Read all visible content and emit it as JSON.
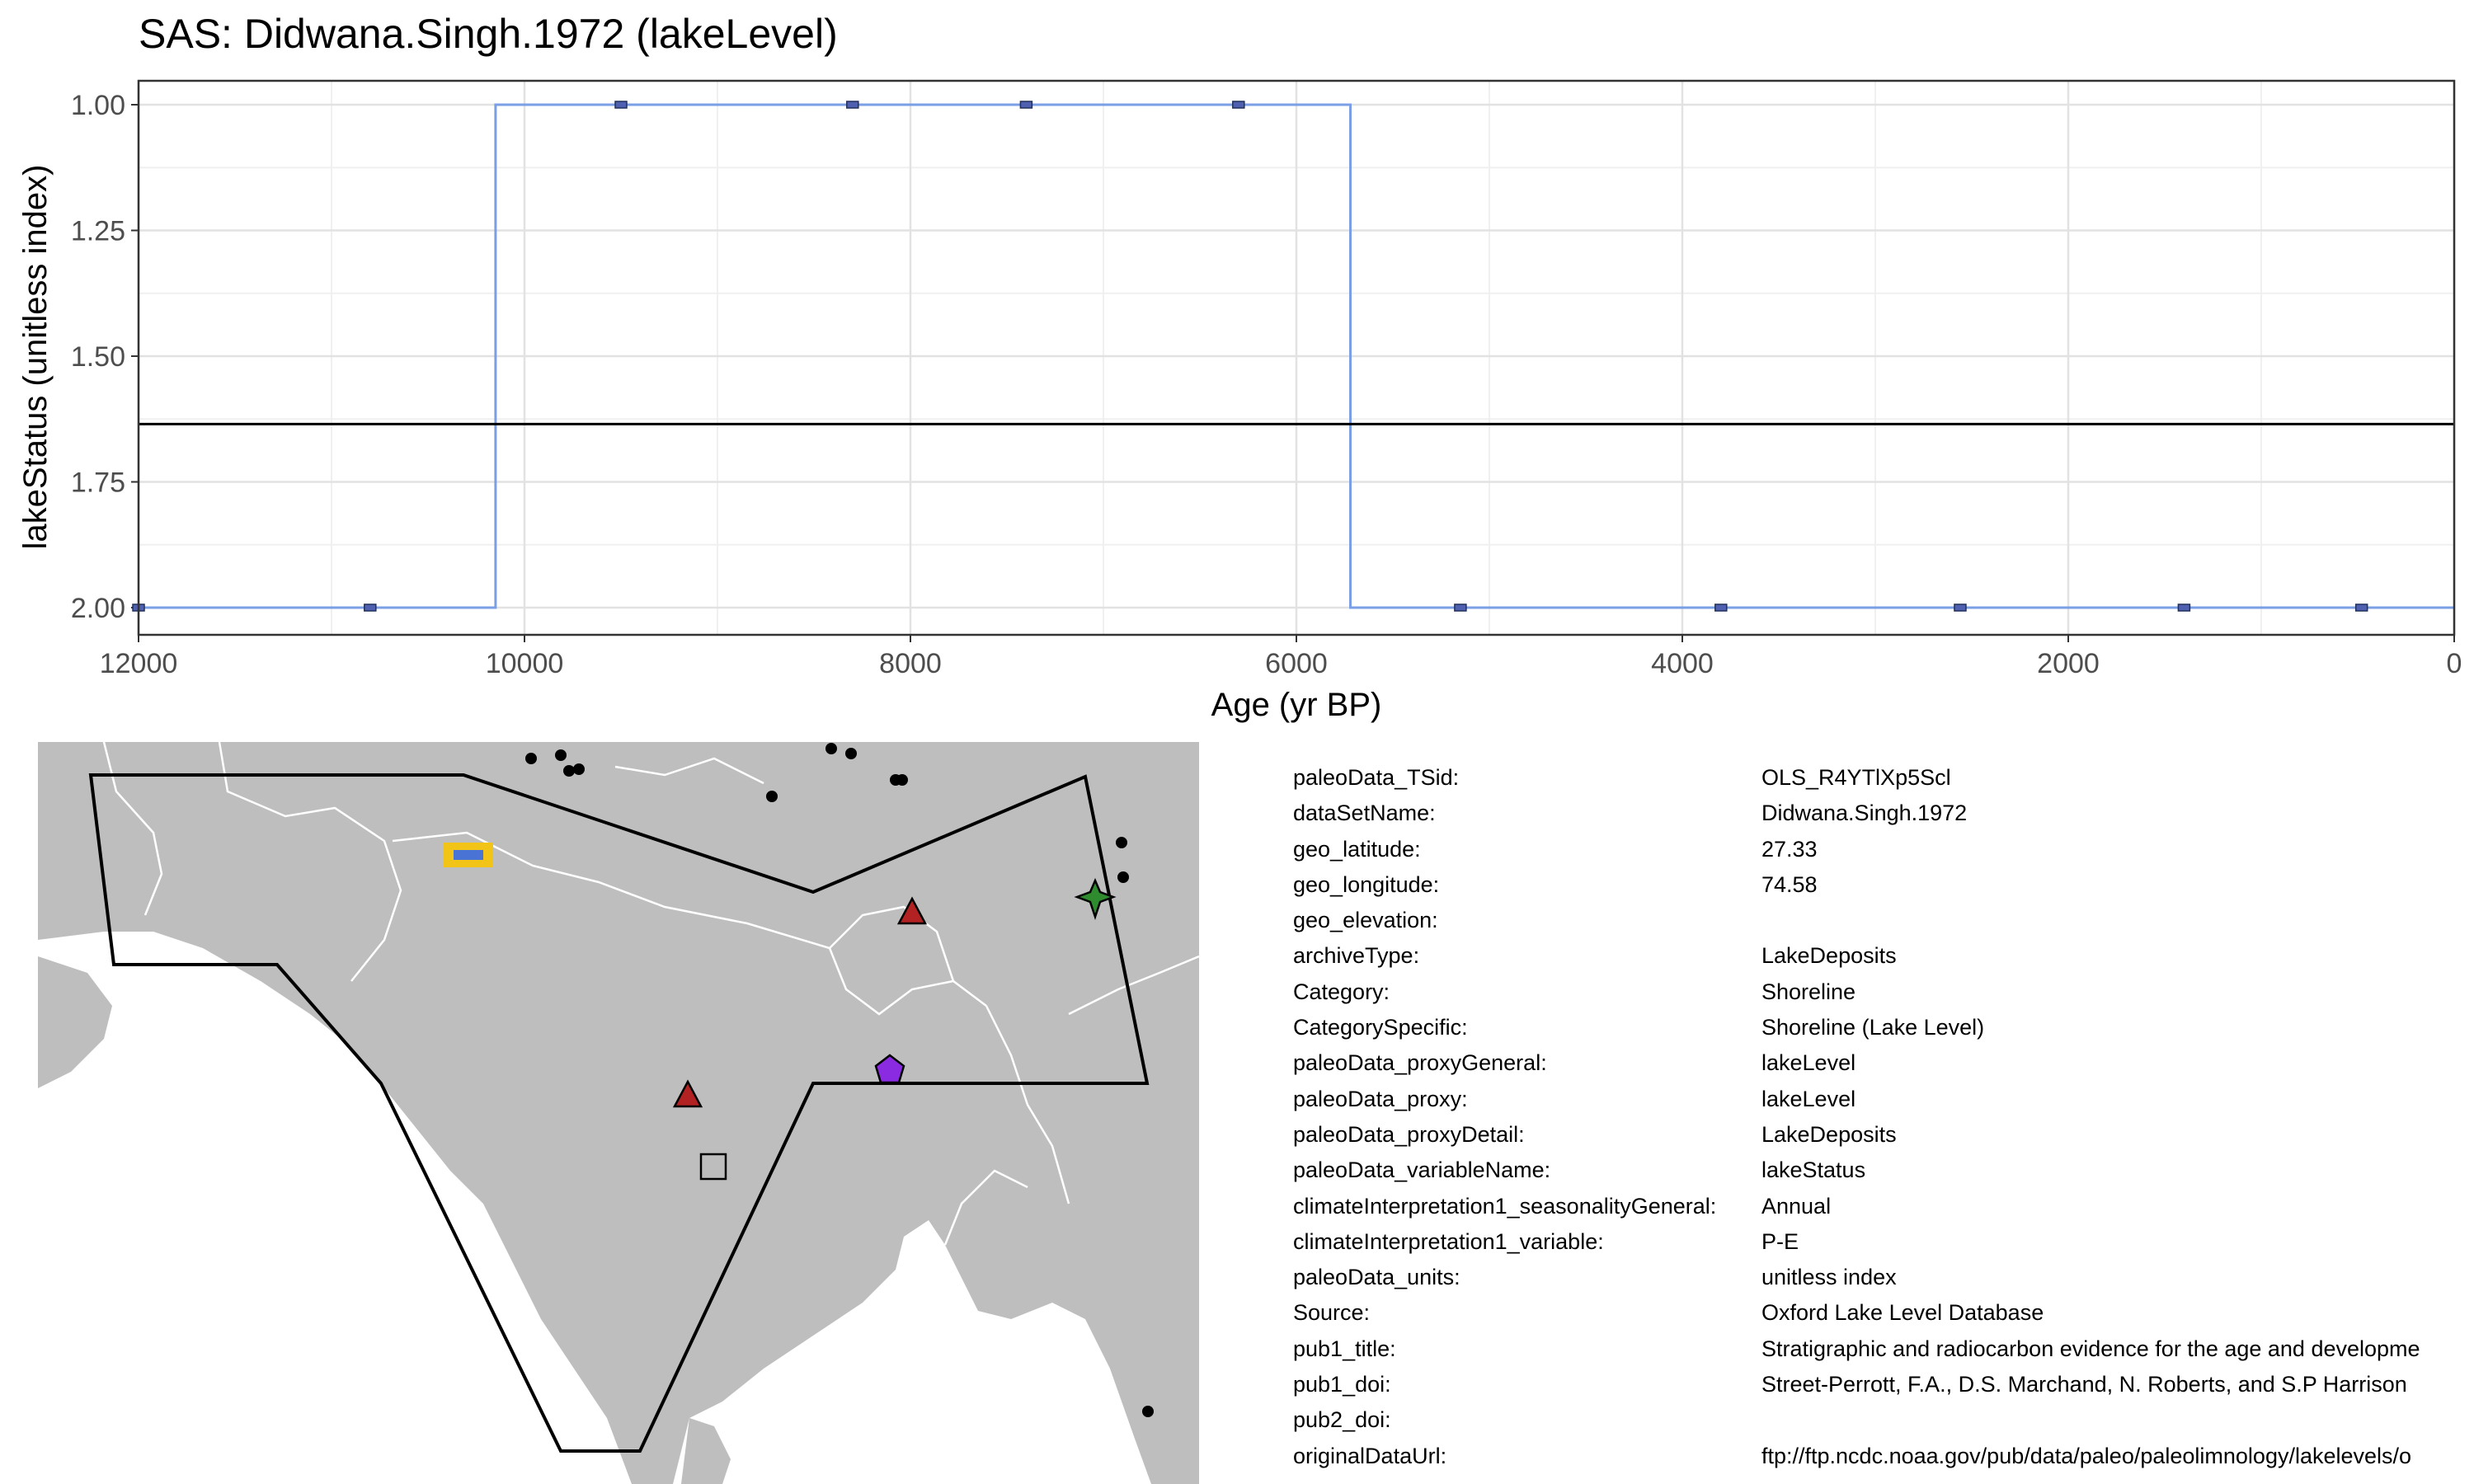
{
  "chart_data": {
    "type": "line",
    "title": "SAS: Didwana.Singh.1972 (lakeLevel)",
    "xlabel": "Age (yr BP)",
    "ylabel": "lakeStatus (unitless index)",
    "xlim": [
      12000,
      0
    ],
    "ylim": [
      2.0,
      1.0
    ],
    "x_reversed": true,
    "y_reversed": true,
    "x_ticks": [
      12000,
      10000,
      8000,
      6000,
      4000,
      2000,
      0
    ],
    "y_ticks": [
      "1.00",
      "1.25",
      "1.50",
      "1.75",
      "2.00"
    ],
    "grid": true,
    "step_x": [
      12000,
      10150,
      10150,
      5720,
      5720,
      0
    ],
    "step_y": [
      2,
      2,
      1,
      1,
      2,
      2
    ],
    "points_x": [
      12000,
      10800,
      9500,
      8300,
      7400,
      6300,
      5150,
      3800,
      2560,
      1400,
      480
    ],
    "points_y": [
      2,
      2,
      1,
      1,
      1,
      1,
      2,
      2,
      2,
      2,
      2
    ],
    "mean_line": 1.635,
    "line_color": "#7b9fe4",
    "point_color": "#5060b0"
  },
  "map": {
    "land_color": "#bebebe",
    "border_color": "#ffffff",
    "markers": [
      {
        "shape": "rect",
        "color": "#f2c417",
        "inner_color": "#4a73d6",
        "label": "site"
      },
      {
        "shape": "triangle",
        "color": "#b22222"
      },
      {
        "shape": "triangle",
        "color": "#b22222"
      },
      {
        "shape": "star",
        "color": "#2e8b2e"
      },
      {
        "shape": "pentagon",
        "color": "#8a2be2"
      },
      {
        "shape": "square",
        "color": "#bdbdbd"
      }
    ]
  },
  "metadata": [
    {
      "key": "paleoData_TSid:",
      "value": "OLS_R4YTlXp5Scl"
    },
    {
      "key": "dataSetName:",
      "value": "Didwana.Singh.1972"
    },
    {
      "key": "geo_latitude:",
      "value": "27.33"
    },
    {
      "key": "geo_longitude:",
      "value": "74.58"
    },
    {
      "key": "geo_elevation:",
      "value": ""
    },
    {
      "key": "archiveType:",
      "value": "LakeDeposits"
    },
    {
      "key": "Category:",
      "value": "Shoreline"
    },
    {
      "key": "CategorySpecific:",
      "value": "Shoreline (Lake Level)"
    },
    {
      "key": "paleoData_proxyGeneral:",
      "value": "lakeLevel"
    },
    {
      "key": "paleoData_proxy:",
      "value": "lakeLevel"
    },
    {
      "key": "paleoData_proxyDetail:",
      "value": "LakeDeposits"
    },
    {
      "key": "paleoData_variableName:",
      "value": "lakeStatus"
    },
    {
      "key": "climateInterpretation1_seasonalityGeneral:",
      "value": "Annual"
    },
    {
      "key": "climateInterpretation1_variable:",
      "value": "P-E"
    },
    {
      "key": "paleoData_units:",
      "value": "unitless index"
    },
    {
      "key": "Source:",
      "value": "Oxford Lake Level Database"
    },
    {
      "key": "pub1_title:",
      "value": "Stratigraphic and radiocarbon evidence for the age and developme"
    },
    {
      "key": "pub1_doi:",
      "value": "Street-Perrott, F.A., D.S. Marchand, N. Roberts, and S.P Harrison"
    },
    {
      "key": "pub2_doi:",
      "value": ""
    },
    {
      "key": "originalDataUrl:",
      "value": "ftp://ftp.ncdc.noaa.gov/pub/data/paleo/paleolimnology/lakelevels/o"
    }
  ]
}
